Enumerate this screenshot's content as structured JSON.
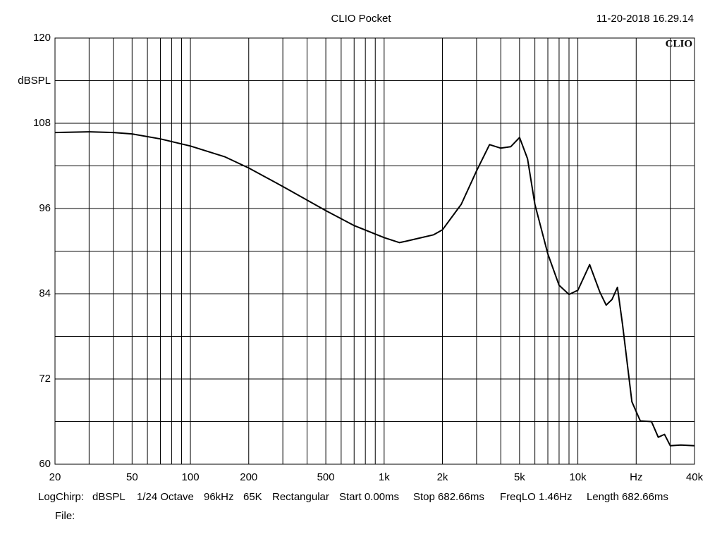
{
  "chart_data": {
    "type": "line",
    "title": "CLIO Pocket",
    "timestamp": "11-20-2018 16.29.14",
    "logo": "CLIO",
    "y_label": "dBSPL",
    "x_scale": "log",
    "grid": true,
    "xlim": [
      20,
      40000
    ],
    "ylim": [
      60,
      120
    ],
    "xticks": [
      20,
      50,
      100,
      200,
      500,
      {
        "value": 1000,
        "label": "1k"
      },
      {
        "value": 2000,
        "label": "2k"
      },
      {
        "value": 5000,
        "label": "5k"
      },
      {
        "value": 10000,
        "label": "10k"
      },
      {
        "value": 20000,
        "label": "Hz"
      },
      {
        "value": 40000,
        "label": "40k"
      }
    ],
    "xgrid": [
      30,
      40,
      60,
      70,
      80,
      90,
      300,
      400,
      600,
      700,
      800,
      900,
      3000,
      4000,
      6000,
      7000,
      8000,
      9000,
      30000
    ],
    "yticks": [
      60,
      72,
      84,
      96,
      108,
      120
    ],
    "ygrid": [
      66,
      78,
      90,
      102,
      114
    ],
    "x": [
      20,
      30,
      40,
      50,
      70,
      100,
      150,
      200,
      300,
      500,
      700,
      1000,
      1200,
      1300,
      1500,
      1800,
      2000,
      2500,
      3000,
      3500,
      4000,
      4500,
      5000,
      5500,
      6000,
      7000,
      8000,
      9000,
      10000,
      11500,
      13000,
      14000,
      15000,
      16000,
      17000,
      19000,
      21000,
      24000,
      26000,
      28000,
      30000,
      34000,
      40000
    ],
    "series": [
      {
        "color": "#000000",
        "values": [
          106.7,
          106.8,
          106.7,
          106.5,
          105.8,
          104.8,
          103.3,
          101.7,
          99.1,
          95.7,
          93.6,
          91.9,
          91.2,
          91.4,
          91.8,
          92.3,
          93.0,
          96.6,
          101.3,
          105.0,
          104.5,
          104.7,
          106.0,
          103.0,
          96.6,
          89.6,
          85.2,
          83.9,
          84.5,
          88.1,
          84.2,
          82.4,
          83.2,
          84.9,
          79.7,
          68.8,
          66.1,
          66.0,
          63.8,
          64.2,
          62.6,
          62.7,
          62.6
        ]
      }
    ],
    "footer": [
      "LogChirp:",
      "dBSPL",
      "1/24 Octave",
      "96kHz",
      "65K",
      "Rectangular",
      "Start 0.00ms",
      "Stop 682.66ms",
      "FreqLO 1.46Hz",
      "Length 682.66ms"
    ],
    "file_label": "File:"
  }
}
